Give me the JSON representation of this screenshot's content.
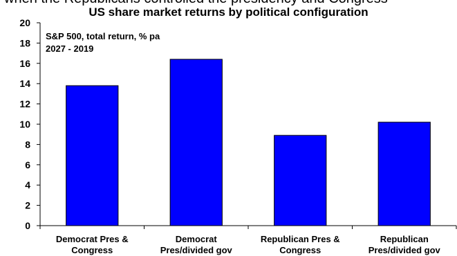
{
  "header": {
    "clipped_text": "when the Republicans controlled the presidency and Congress"
  },
  "chart_data": {
    "type": "bar",
    "title": "US share market returns by political configuration",
    "annotation_lines": [
      "S&P 500, total return, % pa",
      "2027 - 2019"
    ],
    "categories": [
      [
        "Democrat Pres &",
        "Congress"
      ],
      [
        "Democrat",
        "Pres/divided gov"
      ],
      [
        "Republican Pres &",
        "Congress"
      ],
      [
        "Republican",
        "Pres/divided gov"
      ]
    ],
    "values": [
      13.8,
      16.4,
      8.9,
      10.2
    ],
    "ylim": [
      0,
      20
    ],
    "yticks": [
      0,
      2,
      4,
      6,
      8,
      10,
      12,
      14,
      16,
      18,
      20
    ],
    "xlabel": "",
    "ylabel": "",
    "grid": false,
    "legend": "none",
    "bar_color": "#0000ff",
    "bar_edge_color": "#000000"
  }
}
